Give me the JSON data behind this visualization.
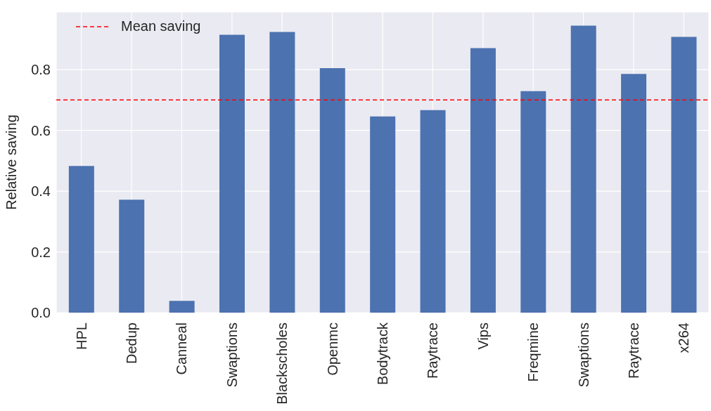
{
  "chart_data": {
    "type": "bar",
    "ylabel": "Relative saving",
    "categories": [
      "HPL",
      "Dedup",
      "Canneal",
      "Swaptions",
      "Blackscholes",
      "Openmc",
      "Bodytrack",
      "Raytrace",
      "Vips",
      "Freqmine",
      "Swaptions",
      "Raytrace",
      "x264"
    ],
    "values": [
      0.483,
      0.372,
      0.039,
      0.915,
      0.924,
      0.805,
      0.646,
      0.667,
      0.871,
      0.729,
      0.945,
      0.786,
      0.908
    ],
    "color": "#4c72b0",
    "ylim": [
      0,
      0.99
    ],
    "yticks": [
      {
        "value": 0,
        "label": "0.0"
      },
      0.2,
      0.4,
      0.6,
      0.8
    ],
    "ref_lines": [
      {
        "axis": "y",
        "value": 0.7,
        "label": "Mean saving",
        "color": "#ff0000",
        "line_style": "dashed"
      }
    ],
    "grid": true,
    "legend": "top left"
  }
}
